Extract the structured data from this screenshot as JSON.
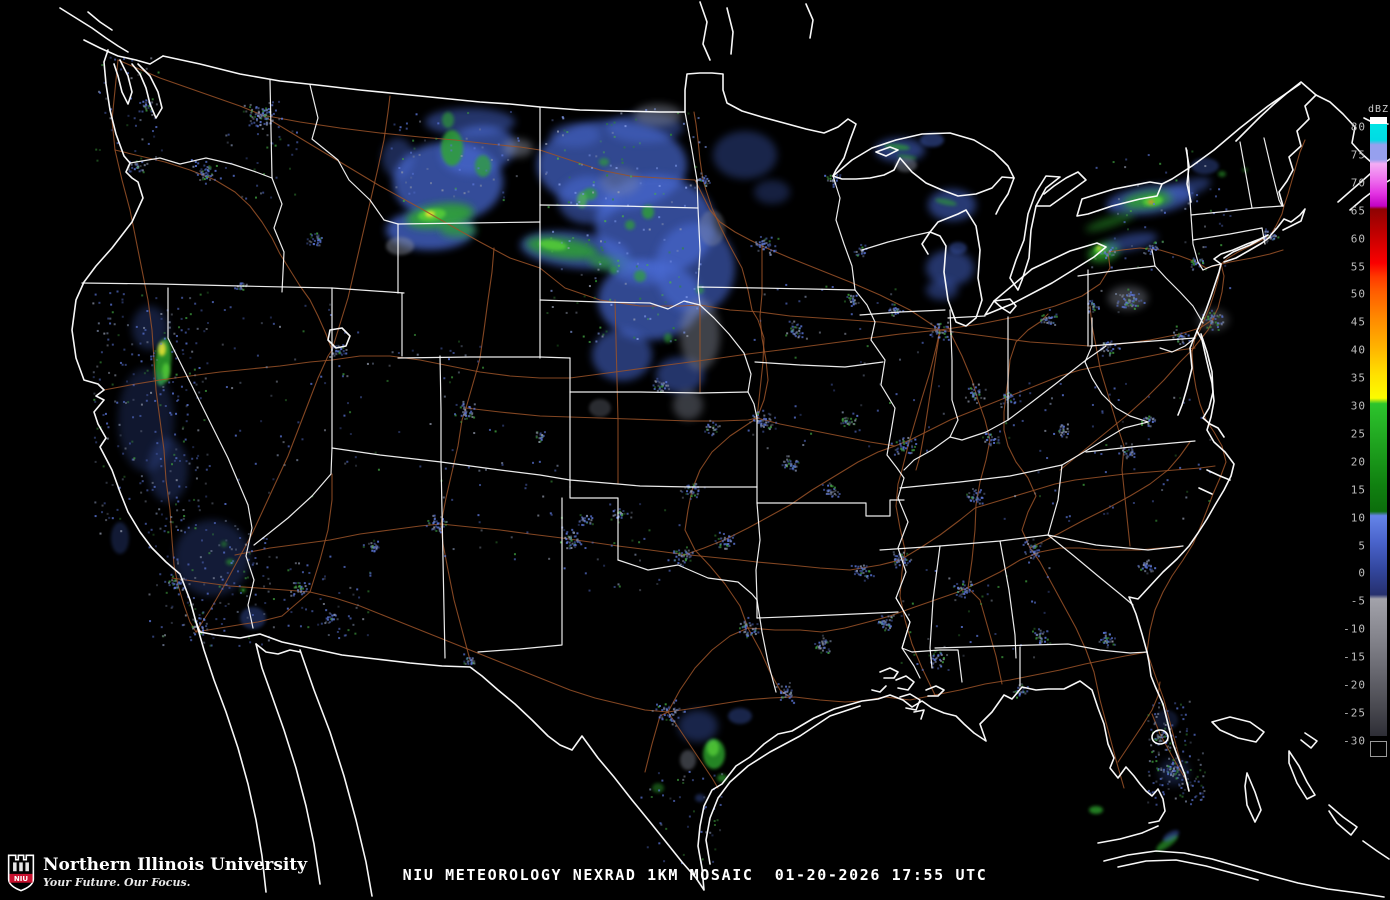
{
  "caption": {
    "text": "NIU METEOROLOGY NEXRAD 1KM MOSAIC  01-20-2026 17:55 UTC"
  },
  "legend": {
    "unit": "dBZ",
    "ticks": [
      "80",
      "75",
      "70",
      "65",
      "60",
      "55",
      "50",
      "45",
      "40",
      "35",
      "30",
      "25",
      "20",
      "15",
      "10",
      "5",
      "0",
      "-5",
      "-10",
      "-15",
      "-20",
      "-25",
      "-30"
    ],
    "gradient": [
      [
        0,
        "#00e4e4"
      ],
      [
        2.6,
        "#00dce4"
      ],
      [
        3.4,
        "#96a0ee"
      ],
      [
        5.8,
        "#96a0ee"
      ],
      [
        6.5,
        "#f4acf4"
      ],
      [
        9.1,
        "#ee70ee"
      ],
      [
        11.4,
        "#e232e2"
      ],
      [
        13.4,
        "#c202c2"
      ],
      [
        13.9,
        "#8e0202"
      ],
      [
        18.2,
        "#c40000"
      ],
      [
        22.7,
        "#fa0000"
      ],
      [
        25,
        "#ff3a00"
      ],
      [
        27.3,
        "#ff5c00"
      ],
      [
        31.8,
        "#ff8a00"
      ],
      [
        36.4,
        "#ffb200"
      ],
      [
        40.9,
        "#ffe000"
      ],
      [
        44.8,
        "#fcfc00"
      ],
      [
        45.7,
        "#2cc42c"
      ],
      [
        50,
        "#24ae24"
      ],
      [
        54.5,
        "#1a981a"
      ],
      [
        59.1,
        "#108010"
      ],
      [
        63.3,
        "#0c6e0c"
      ],
      [
        64,
        "#6484e8"
      ],
      [
        68.2,
        "#4a64cc"
      ],
      [
        72.7,
        "#33479f"
      ],
      [
        76.9,
        "#26306e"
      ],
      [
        77.6,
        "#a2a2aa"
      ],
      [
        81.8,
        "#8e8e96"
      ],
      [
        86.4,
        "#787880"
      ],
      [
        90.9,
        "#606068"
      ],
      [
        95.5,
        "#48484f"
      ],
      [
        100,
        "#2e2e36"
      ]
    ],
    "no_data_color": "#000000"
  },
  "logo": {
    "abbr": "NIU",
    "org_name": "Northern Illinois University",
    "tagline": "Your Future. Our Focus.",
    "brand_red": "#c8102e"
  },
  "colors": {
    "background": "#000000",
    "coastline": "#ffffff",
    "state_border": "#ffffff",
    "roads": "#9a5228",
    "echo_light": "#4a6ad4",
    "echo_moderate": "#2fa62f",
    "echo_strong": "#54cc38",
    "echo_heavy": "#e8e432",
    "echo_severe": "#e8862a",
    "echo_clutter": "#8d93a2"
  }
}
